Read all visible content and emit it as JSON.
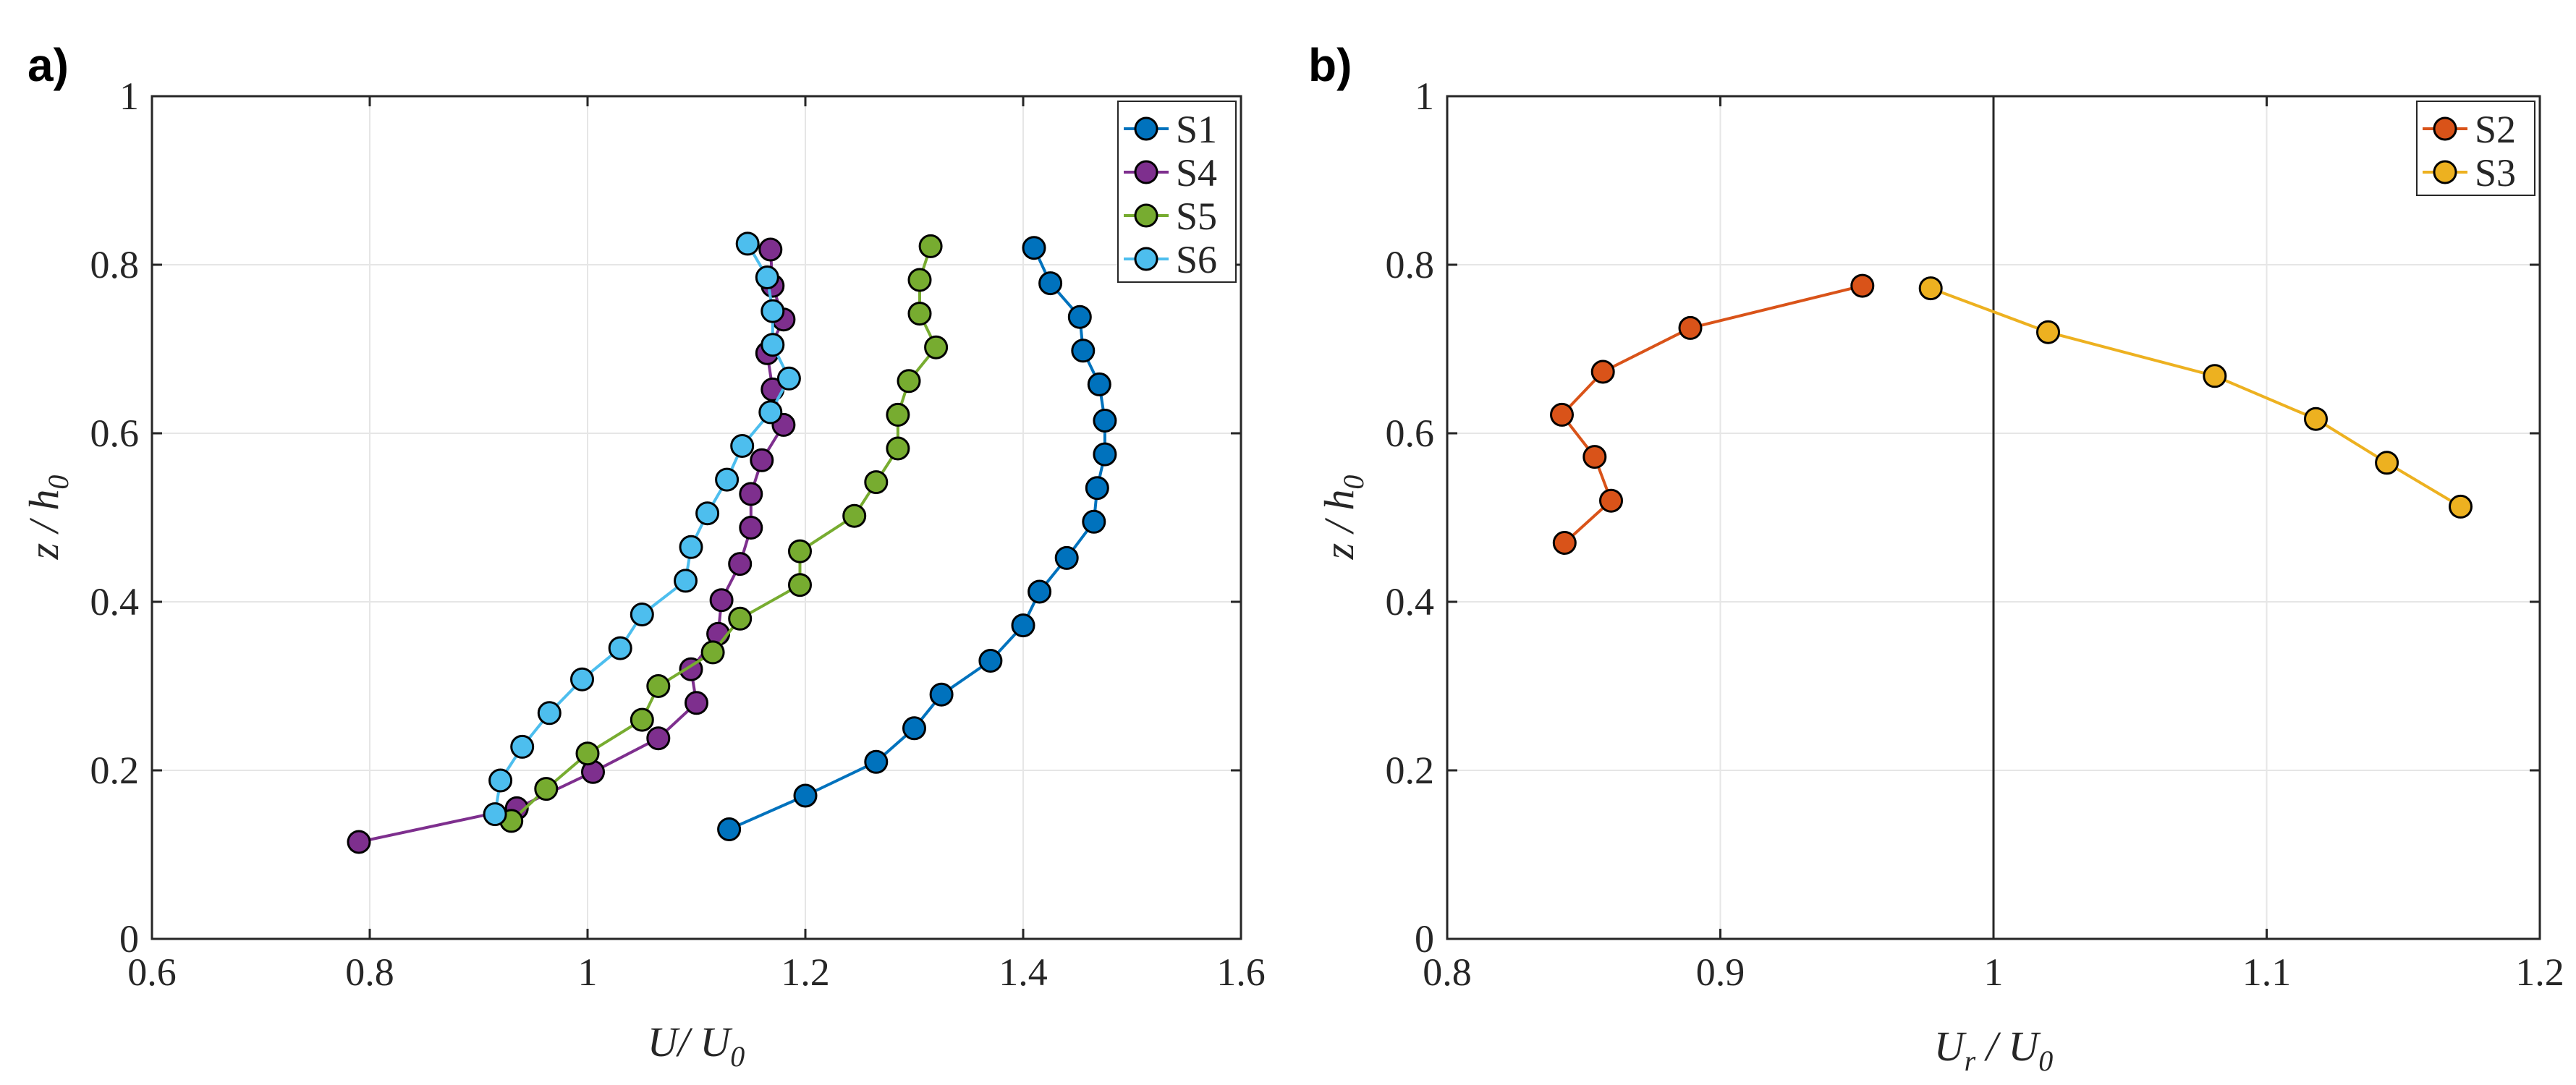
{
  "chart_data": [
    {
      "type": "line",
      "panel_label": "a)",
      "xlabel": {
        "main": "U",
        "sep": "/ ",
        "main2": "U",
        "sub2": "0"
      },
      "ylabel": {
        "main": "z",
        "sep": " / ",
        "main2": "h",
        "sub2": "0"
      },
      "xlim": [
        0.6,
        1.6
      ],
      "ylim": [
        0,
        1
      ],
      "xticks": [
        0.6,
        0.8,
        1,
        1.2,
        1.4,
        1.6
      ],
      "xtick_labels": [
        "0.6",
        "0.8",
        "1",
        "1.2",
        "1.4",
        "1.6"
      ],
      "yticks": [
        0,
        0.2,
        0.4,
        0.6,
        0.8,
        1
      ],
      "ytick_labels": [
        "0",
        "0.2",
        "0.4",
        "0.6",
        "0.8",
        "1"
      ],
      "grid": true,
      "legend_position": "top-right",
      "series": [
        {
          "name": "S1",
          "color": "#0072BD",
          "x": [
            1.13,
            1.2,
            1.265,
            1.3,
            1.325,
            1.37,
            1.4,
            1.415,
            1.44,
            1.465,
            1.468,
            1.475,
            1.475,
            1.47,
            1.455,
            1.452,
            1.425,
            1.41
          ],
          "y": [
            0.13,
            0.17,
            0.21,
            0.25,
            0.29,
            0.33,
            0.372,
            0.412,
            0.452,
            0.495,
            0.535,
            0.575,
            0.615,
            0.658,
            0.698,
            0.738,
            0.778,
            0.82
          ]
        },
        {
          "name": "S4",
          "color": "#7E2F8E",
          "x": [
            0.79,
            0.935,
            1.005,
            1.065,
            1.1,
            1.095,
            1.12,
            1.123,
            1.14,
            1.15,
            1.15,
            1.16,
            1.18,
            1.17,
            1.165,
            1.18,
            1.17,
            1.168
          ],
          "y": [
            0.115,
            0.155,
            0.198,
            0.238,
            0.28,
            0.32,
            0.362,
            0.402,
            0.445,
            0.488,
            0.528,
            0.568,
            0.61,
            0.652,
            0.695,
            0.735,
            0.775,
            0.818
          ]
        },
        {
          "name": "S5",
          "color": "#77AC30",
          "x": [
            0.93,
            0.962,
            1.0,
            1.05,
            1.065,
            1.115,
            1.14,
            1.195,
            1.195,
            1.245,
            1.265,
            1.285,
            1.285,
            1.295,
            1.32,
            1.305,
            1.305,
            1.315
          ],
          "y": [
            0.14,
            0.178,
            0.22,
            0.26,
            0.3,
            0.34,
            0.38,
            0.42,
            0.46,
            0.502,
            0.542,
            0.582,
            0.622,
            0.662,
            0.702,
            0.742,
            0.782,
            0.822
          ]
        },
        {
          "name": "S6",
          "color": "#4DBEEE",
          "x": [
            0.915,
            0.92,
            0.94,
            0.965,
            0.995,
            1.03,
            1.05,
            1.09,
            1.095,
            1.11,
            1.128,
            1.142,
            1.168,
            1.185,
            1.17,
            1.17,
            1.165,
            1.147
          ],
          "y": [
            0.148,
            0.188,
            0.228,
            0.268,
            0.308,
            0.345,
            0.385,
            0.425,
            0.465,
            0.505,
            0.545,
            0.585,
            0.625,
            0.665,
            0.705,
            0.745,
            0.785,
            0.825
          ]
        }
      ]
    },
    {
      "type": "line",
      "panel_label": "b)",
      "xlabel": {
        "main": "U",
        "sub1": "r",
        "sep": " / ",
        "main2": "U",
        "sub2": "0"
      },
      "ylabel": {
        "main": "z",
        "sep": " / ",
        "main2": "h",
        "sub2": "0"
      },
      "xlim": [
        0.8,
        1.2
      ],
      "ylim": [
        0,
        1
      ],
      "xticks": [
        0.8,
        0.9,
        1,
        1.1,
        1.2
      ],
      "xtick_labels": [
        "0.8",
        "0.9",
        "1",
        "1.1",
        "1.2"
      ],
      "yticks": [
        0,
        0.2,
        0.4,
        0.6,
        0.8,
        1
      ],
      "ytick_labels": [
        "0",
        "0.2",
        "0.4",
        "0.6",
        "0.8",
        "1"
      ],
      "grid": true,
      "reference_line_x": 1,
      "legend_position": "top-right",
      "series": [
        {
          "name": "S2",
          "color": "#D95319",
          "x": [
            0.843,
            0.86,
            0.854,
            0.842,
            0.857,
            0.889,
            0.952
          ],
          "y": [
            0.47,
            0.52,
            0.572,
            0.622,
            0.673,
            0.725,
            0.775
          ]
        },
        {
          "name": "S3",
          "color": "#EDB120",
          "x": [
            0.977,
            1.02,
            1.081,
            1.118,
            1.144,
            1.171
          ],
          "y": [
            0.772,
            0.72,
            0.668,
            0.617,
            0.565,
            0.513
          ]
        }
      ]
    }
  ]
}
